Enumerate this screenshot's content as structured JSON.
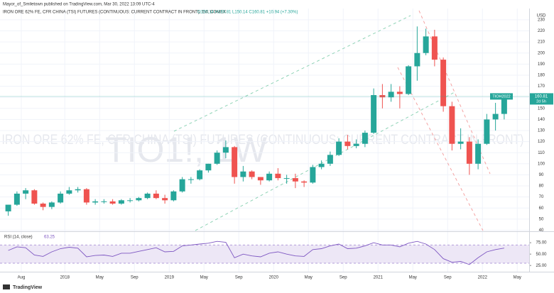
{
  "header": {
    "publisher": "Mayor_of_Smiletown published on TradingView.com, Mar 30, 2022 13:09 UTC-4",
    "symbol": "IRON ORE 62% FE, CFR CHINA (TSI) FUTURES (CONTINUOUS: CURRENT CONTRACT IN FRONT), 1W, COMEX",
    "ohlc": "O150.14 H160.81 L150.14 C160.81 +10.94 (+7.30%)",
    "watermark_symbol": "TIO1!, 1W",
    "watermark_name": "IRON ORE 62% FE, CFR CHINA (TSI) FUTURES (CONTINUOUS: CURRENT CONTRACT IN FRONT)"
  },
  "chart_data": [
    {
      "type": "candlestick",
      "currency": "USD",
      "contract": "TIOH2022",
      "countdown": "2d 5h",
      "up_color": "#26a69a",
      "down_color": "#ef5350",
      "x": [
        "2017-06",
        "2017-07",
        "2017-08",
        "2017-09",
        "2017-10",
        "2017-11",
        "2017-12",
        "2018-01",
        "2018-02",
        "2018-03",
        "2018-04",
        "2018-05",
        "2018-06",
        "2018-07",
        "2018-08",
        "2018-09",
        "2018-10",
        "2018-11",
        "2018-12",
        "2019-01",
        "2019-02",
        "2019-03",
        "2019-04",
        "2019-05",
        "2019-06",
        "2019-07",
        "2019-08",
        "2019-09",
        "2019-10",
        "2019-11",
        "2019-12",
        "2020-01",
        "2020-02",
        "2020-03",
        "2020-04",
        "2020-05",
        "2020-06",
        "2020-07",
        "2020-08",
        "2020-09",
        "2020-10",
        "2020-11",
        "2020-12",
        "2021-01",
        "2021-02",
        "2021-03",
        "2021-04",
        "2021-05",
        "2021-06",
        "2021-07",
        "2021-08",
        "2021-09",
        "2021-10",
        "2021-11",
        "2021-12",
        "2022-01",
        "2022-02",
        "2022-03"
      ],
      "open": [
        57,
        63,
        73,
        76,
        64,
        61,
        65,
        73,
        76,
        77,
        65,
        66,
        66,
        64,
        67,
        67,
        69,
        73,
        69,
        67,
        75,
        86,
        86,
        94,
        100,
        110,
        115,
        88,
        93,
        88,
        85,
        91,
        87,
        87,
        84,
        83,
        97,
        100,
        108,
        120,
        116,
        118,
        128,
        162,
        160,
        165,
        163,
        188,
        200,
        215,
        194,
        152,
        118,
        120,
        100,
        118,
        140,
        145
      ],
      "high": [
        63,
        75,
        78,
        77,
        65,
        66,
        75,
        79,
        79,
        78,
        68,
        68,
        68,
        68,
        69,
        70,
        74,
        76,
        72,
        76,
        88,
        88,
        95,
        100,
        112,
        121,
        116,
        98,
        94,
        88,
        93,
        96,
        90,
        91,
        85,
        99,
        103,
        111,
        123,
        126,
        122,
        130,
        168,
        172,
        172,
        170,
        189,
        224,
        222,
        221,
        196,
        156,
        132,
        124,
        122,
        145,
        155,
        162
      ],
      "low": [
        53,
        62,
        68,
        63,
        58,
        59,
        64,
        72,
        74,
        63,
        63,
        64,
        63,
        63,
        65,
        66,
        68,
        68,
        64,
        66,
        74,
        82,
        85,
        92,
        99,
        105,
        82,
        84,
        86,
        81,
        84,
        85,
        82,
        78,
        79,
        82,
        95,
        98,
        107,
        113,
        114,
        115,
        127,
        150,
        156,
        150,
        162,
        175,
        198,
        188,
        147,
        112,
        113,
        90,
        95,
        117,
        130,
        140
      ],
      "close": [
        63,
        73,
        76,
        64,
        61,
        65,
        73,
        76,
        77,
        65,
        66,
        66,
        64,
        67,
        67,
        69,
        73,
        69,
        67,
        75,
        86,
        86,
        94,
        100,
        110,
        115,
        88,
        93,
        88,
        85,
        91,
        87,
        87,
        84,
        83,
        97,
        100,
        108,
        120,
        116,
        118,
        128,
        162,
        160,
        165,
        163,
        188,
        200,
        215,
        194,
        152,
        118,
        120,
        100,
        118,
        140,
        145,
        160.81
      ],
      "ylim": [
        39,
        237
      ],
      "yticks": [
        40,
        50,
        60,
        70,
        80,
        90,
        100,
        110,
        120,
        130,
        140,
        150,
        160,
        170,
        180,
        190,
        200,
        210,
        220,
        230
      ],
      "xticks": [
        {
          "value": "2017-08",
          "label": "Aug"
        },
        {
          "value": "2018-01",
          "label": "2018"
        },
        {
          "value": "2018-05",
          "label": "May"
        },
        {
          "value": "2018-09",
          "label": "Sep"
        },
        {
          "value": "2019-01",
          "label": "2019"
        },
        {
          "value": "2019-05",
          "label": "May"
        },
        {
          "value": "2019-09",
          "label": "Sep"
        },
        {
          "value": "2020-01",
          "label": "2020"
        },
        {
          "value": "2020-05",
          "label": "May"
        },
        {
          "value": "2020-09",
          "label": "Sep"
        },
        {
          "value": "2021-01",
          "label": "2021"
        },
        {
          "value": "2021-05",
          "label": "May"
        },
        {
          "value": "2021-09",
          "label": "Sep"
        },
        {
          "value": "2022-01",
          "label": "2022"
        },
        {
          "value": "2022-05",
          "label": "May"
        }
      ],
      "grid": true
    },
    {
      "type": "line",
      "title": "RSI (14, close)",
      "color": "#7e57c2",
      "x": [
        "2017-06",
        "2017-07",
        "2017-08",
        "2017-09",
        "2017-10",
        "2017-11",
        "2017-12",
        "2018-01",
        "2018-02",
        "2018-03",
        "2018-04",
        "2018-05",
        "2018-06",
        "2018-07",
        "2018-08",
        "2018-09",
        "2018-10",
        "2018-11",
        "2018-12",
        "2019-01",
        "2019-02",
        "2019-03",
        "2019-04",
        "2019-05",
        "2019-06",
        "2019-07",
        "2019-08",
        "2019-09",
        "2019-10",
        "2019-11",
        "2019-12",
        "2020-01",
        "2020-02",
        "2020-03",
        "2020-04",
        "2020-05",
        "2020-06",
        "2020-07",
        "2020-08",
        "2020-09",
        "2020-10",
        "2020-11",
        "2020-12",
        "2021-01",
        "2021-02",
        "2021-03",
        "2021-04",
        "2021-05",
        "2021-06",
        "2021-07",
        "2021-08",
        "2021-09",
        "2021-10",
        "2021-11",
        "2021-12",
        "2022-01",
        "2022-02",
        "2022-03"
      ],
      "values": [
        58,
        66,
        64,
        48,
        45,
        55,
        62,
        65,
        63,
        44,
        47,
        48,
        45,
        52,
        52,
        56,
        60,
        64,
        55,
        56,
        68,
        70,
        72,
        74,
        78,
        76,
        42,
        50,
        46,
        44,
        52,
        55,
        50,
        46,
        45,
        60,
        62,
        68,
        72,
        62,
        63,
        68,
        75,
        70,
        70,
        66,
        74,
        78,
        72,
        60,
        40,
        32,
        34,
        27,
        42,
        55,
        60,
        63.25
      ],
      "ylim": [
        16,
        97
      ],
      "yticks": [
        {
          "value": 25,
          "label": "25.00"
        },
        {
          "value": 50,
          "label": "50.00"
        },
        {
          "value": 75,
          "label": "75.00"
        }
      ],
      "band": [
        30,
        70
      ],
      "band_color": "#ede7f6"
    }
  ],
  "footer": "TradingView"
}
